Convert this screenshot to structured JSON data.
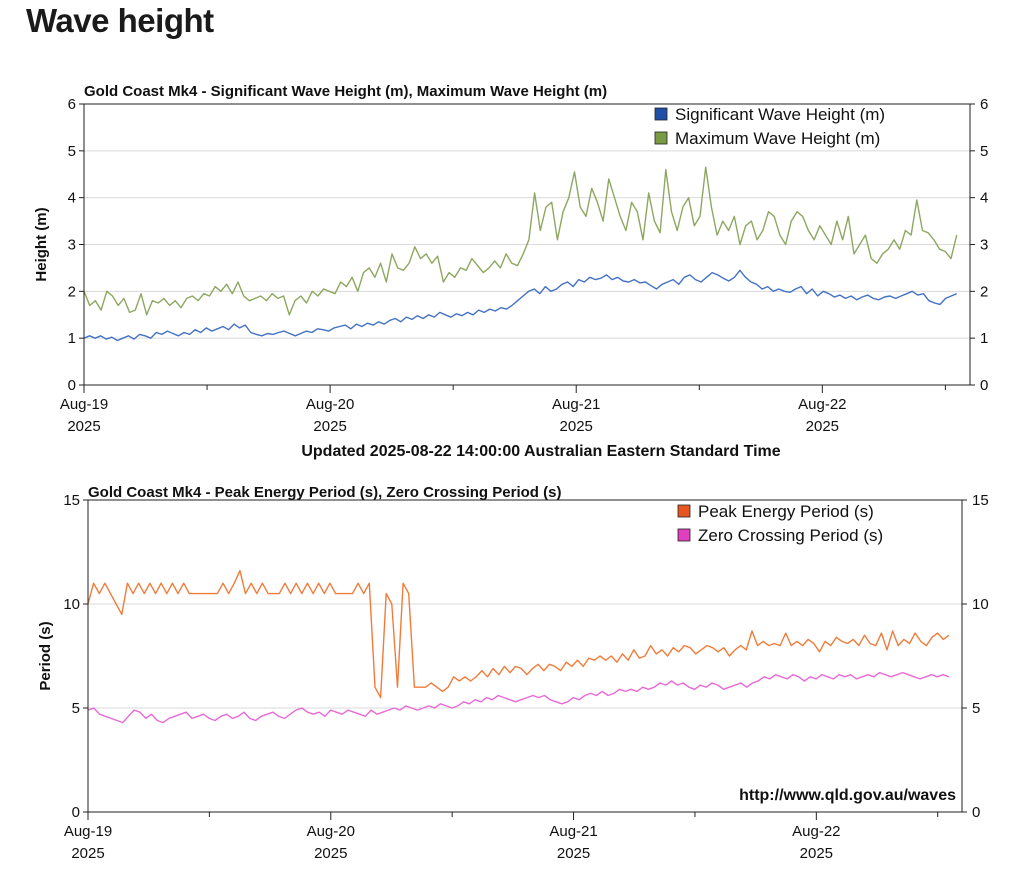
{
  "page": {
    "heading": "Wave height"
  },
  "chart_data": [
    {
      "type": "line",
      "title": "Gold Coast Mk4 - Significant Wave Height (m), Maximum Wave Height (m)",
      "ylabel": "Height (m)",
      "ylim": [
        0,
        6
      ],
      "yticks": [
        "0",
        "1",
        "2",
        "3",
        "4",
        "5",
        "6"
      ],
      "xlim": [
        0,
        3.6
      ],
      "x_date_labels": [
        {
          "x": 0,
          "line1": "Aug-19",
          "line2": "2025"
        },
        {
          "x": 1,
          "line1": "Aug-20",
          "line2": "2025"
        },
        {
          "x": 2,
          "line1": "Aug-21",
          "line2": "2025"
        },
        {
          "x": 3,
          "line1": "Aug-22",
          "line2": "2025"
        }
      ],
      "grid": true,
      "legend_position": "top-right",
      "footer": "Updated 2025-08-22 14:00:00 Australian Eastern Standard Time",
      "series": [
        {
          "name": "Significant Wave Height (m)",
          "color": "#4472c4",
          "legend_color": "#1f4fa6",
          "values": [
            1.0,
            1.05,
            1.0,
            1.05,
            0.98,
            1.02,
            0.95,
            1.0,
            1.05,
            0.98,
            1.08,
            1.05,
            1.0,
            1.12,
            1.08,
            1.15,
            1.1,
            1.05,
            1.12,
            1.08,
            1.18,
            1.12,
            1.22,
            1.15,
            1.2,
            1.25,
            1.18,
            1.3,
            1.22,
            1.28,
            1.12,
            1.08,
            1.05,
            1.1,
            1.08,
            1.12,
            1.15,
            1.1,
            1.05,
            1.1,
            1.15,
            1.12,
            1.2,
            1.18,
            1.15,
            1.22,
            1.25,
            1.28,
            1.2,
            1.3,
            1.25,
            1.32,
            1.28,
            1.35,
            1.3,
            1.38,
            1.42,
            1.35,
            1.45,
            1.4,
            1.48,
            1.42,
            1.5,
            1.45,
            1.55,
            1.5,
            1.45,
            1.52,
            1.48,
            1.55,
            1.5,
            1.6,
            1.55,
            1.62,
            1.58,
            1.65,
            1.62,
            1.7,
            1.8,
            1.9,
            2.0,
            2.05,
            1.95,
            2.1,
            2.0,
            2.05,
            2.15,
            2.2,
            2.1,
            2.25,
            2.2,
            2.3,
            2.25,
            2.28,
            2.35,
            2.25,
            2.3,
            2.22,
            2.2,
            2.25,
            2.18,
            2.2,
            2.12,
            2.05,
            2.15,
            2.2,
            2.25,
            2.15,
            2.3,
            2.35,
            2.25,
            2.2,
            2.3,
            2.4,
            2.35,
            2.28,
            2.22,
            2.3,
            2.45,
            2.3,
            2.2,
            2.15,
            2.05,
            2.1,
            2.0,
            2.05,
            2.0,
            1.98,
            2.05,
            2.1,
            1.95,
            2.05,
            1.9,
            2.0,
            1.95,
            1.88,
            1.92,
            1.85,
            1.9,
            1.82,
            1.88,
            1.92,
            1.85,
            1.82,
            1.88,
            1.9,
            1.85,
            1.9,
            1.95,
            2.0,
            1.92,
            1.95,
            1.8,
            1.75,
            1.72,
            1.85,
            1.9,
            1.95
          ]
        },
        {
          "name": "Maximum Wave Height (m)",
          "color": "#8ea760",
          "legend_color": "#7a9a46",
          "values": [
            2.0,
            1.7,
            1.8,
            1.6,
            2.0,
            1.9,
            1.7,
            1.85,
            1.55,
            1.6,
            1.95,
            1.5,
            1.8,
            1.75,
            1.85,
            1.7,
            1.8,
            1.65,
            1.85,
            1.9,
            1.8,
            1.95,
            1.9,
            2.1,
            2.0,
            2.15,
            1.95,
            2.2,
            1.9,
            1.8,
            1.85,
            1.9,
            1.8,
            1.95,
            1.85,
            1.9,
            1.5,
            1.8,
            1.9,
            1.75,
            2.0,
            1.9,
            2.05,
            2.0,
            1.95,
            2.2,
            2.1,
            2.3,
            2.0,
            2.4,
            2.5,
            2.3,
            2.6,
            2.2,
            2.8,
            2.5,
            2.45,
            2.6,
            2.95,
            2.7,
            2.8,
            2.6,
            2.75,
            2.2,
            2.4,
            2.3,
            2.5,
            2.45,
            2.7,
            2.55,
            2.4,
            2.5,
            2.65,
            2.5,
            2.8,
            2.6,
            2.55,
            2.8,
            3.1,
            4.1,
            3.3,
            3.8,
            3.9,
            3.1,
            3.7,
            4.0,
            4.55,
            3.8,
            3.6,
            4.2,
            3.9,
            3.5,
            4.4,
            4.0,
            3.6,
            3.3,
            3.9,
            3.7,
            3.1,
            4.1,
            3.5,
            3.25,
            4.6,
            3.7,
            3.3,
            3.8,
            4.0,
            3.4,
            3.6,
            4.65,
            3.8,
            3.2,
            3.5,
            3.3,
            3.6,
            3.0,
            3.4,
            3.5,
            3.1,
            3.3,
            3.7,
            3.6,
            3.2,
            3.0,
            3.5,
            3.7,
            3.6,
            3.3,
            3.1,
            3.4,
            3.2,
            3.0,
            3.5,
            3.1,
            3.6,
            2.8,
            3.0,
            3.2,
            2.7,
            2.6,
            2.8,
            2.9,
            3.1,
            2.9,
            3.3,
            3.2,
            3.95,
            3.3,
            3.25,
            3.1,
            2.9,
            2.85,
            2.7,
            3.2
          ]
        }
      ]
    },
    {
      "type": "line",
      "title": "Gold Coast Mk4 - Peak Energy Period (s), Zero Crossing Period (s)",
      "ylabel": "Period (s)",
      "ylim": [
        0,
        15
      ],
      "yticks": [
        "0",
        "5",
        "10",
        "15"
      ],
      "xlim": [
        0,
        3.6
      ],
      "x_date_labels": [
        {
          "x": 0,
          "line1": "Aug-19",
          "line2": "2025"
        },
        {
          "x": 1,
          "line1": "Aug-20",
          "line2": "2025"
        },
        {
          "x": 2,
          "line1": "Aug-21",
          "line2": "2025"
        },
        {
          "x": 3,
          "line1": "Aug-22",
          "line2": "2025"
        }
      ],
      "grid": true,
      "legend_position": "top-right",
      "annotation": "http://www.qld.gov.au/waves",
      "series": [
        {
          "name": "Peak Energy Period (s)",
          "color": "#f07c3a",
          "legend_color": "#e8561f",
          "values": [
            10.0,
            11.0,
            10.5,
            11.0,
            10.5,
            10.0,
            9.5,
            11.0,
            10.5,
            11.0,
            10.5,
            11.0,
            10.5,
            11.0,
            10.5,
            11.0,
            10.5,
            11.0,
            10.5,
            10.5,
            10.5,
            10.5,
            10.5,
            10.5,
            11.0,
            10.5,
            11.0,
            11.6,
            10.5,
            11.0,
            10.5,
            11.0,
            10.5,
            10.5,
            10.5,
            11.0,
            10.5,
            11.0,
            10.5,
            11.0,
            10.5,
            11.0,
            10.5,
            11.0,
            10.5,
            10.5,
            10.5,
            10.5,
            11.0,
            10.5,
            11.0,
            6.0,
            5.5,
            10.5,
            10.0,
            6.0,
            11.0,
            10.5,
            6.0,
            6.0,
            6.0,
            6.2,
            6.0,
            5.8,
            6.0,
            6.5,
            6.3,
            6.5,
            6.3,
            6.5,
            6.8,
            6.5,
            6.9,
            6.6,
            7.0,
            6.7,
            7.0,
            6.9,
            6.6,
            6.9,
            7.1,
            6.8,
            7.1,
            7.0,
            6.8,
            7.2,
            7.0,
            7.3,
            7.0,
            7.4,
            7.3,
            7.5,
            7.3,
            7.5,
            7.2,
            7.6,
            7.3,
            7.8,
            7.4,
            7.5,
            8.0,
            7.6,
            7.8,
            7.5,
            7.9,
            7.7,
            8.0,
            7.9,
            7.6,
            7.8,
            8.0,
            7.9,
            7.7,
            7.9,
            7.5,
            7.8,
            8.0,
            7.8,
            8.7,
            8.0,
            8.2,
            8.0,
            8.1,
            8.0,
            8.6,
            8.0,
            8.2,
            8.0,
            8.3,
            8.1,
            7.7,
            8.2,
            8.0,
            8.4,
            8.2,
            8.1,
            8.3,
            8.0,
            8.5,
            8.1,
            8.0,
            8.6,
            7.8,
            8.7,
            8.0,
            8.3,
            8.1,
            8.6,
            8.2,
            8.0,
            8.4,
            8.6,
            8.3,
            8.5
          ]
        },
        {
          "name": "Zero Crossing Period (s)",
          "color": "#e86ad6",
          "legend_color": "#e040c0",
          "values": [
            4.9,
            5.0,
            4.7,
            4.6,
            4.5,
            4.4,
            4.3,
            4.6,
            4.9,
            4.8,
            4.5,
            4.7,
            4.4,
            4.3,
            4.5,
            4.6,
            4.7,
            4.8,
            4.5,
            4.6,
            4.7,
            4.5,
            4.4,
            4.6,
            4.7,
            4.5,
            4.6,
            4.8,
            4.5,
            4.4,
            4.6,
            4.7,
            4.8,
            4.6,
            4.5,
            4.7,
            4.9,
            5.0,
            4.8,
            4.7,
            4.8,
            4.6,
            4.9,
            4.8,
            4.7,
            4.9,
            4.8,
            4.7,
            4.6,
            4.9,
            4.7,
            4.8,
            4.9,
            5.0,
            4.9,
            5.1,
            5.0,
            4.9,
            5.0,
            5.1,
            5.0,
            5.2,
            5.1,
            5.0,
            5.1,
            5.3,
            5.2,
            5.4,
            5.3,
            5.5,
            5.4,
            5.6,
            5.5,
            5.4,
            5.3,
            5.4,
            5.5,
            5.6,
            5.5,
            5.6,
            5.4,
            5.3,
            5.2,
            5.3,
            5.5,
            5.4,
            5.6,
            5.7,
            5.6,
            5.8,
            5.6,
            5.7,
            5.9,
            5.8,
            5.9,
            5.8,
            6.0,
            5.9,
            6.0,
            6.2,
            6.1,
            6.3,
            6.1,
            6.2,
            6.0,
            5.9,
            6.1,
            6.0,
            6.2,
            6.1,
            5.9,
            6.0,
            6.1,
            6.2,
            6.0,
            6.2,
            6.3,
            6.5,
            6.4,
            6.6,
            6.5,
            6.4,
            6.6,
            6.5,
            6.3,
            6.5,
            6.4,
            6.6,
            6.5,
            6.4,
            6.6,
            6.5,
            6.6,
            6.4,
            6.5,
            6.6,
            6.5,
            6.7,
            6.6,
            6.5,
            6.6,
            6.7,
            6.6,
            6.5,
            6.4,
            6.5,
            6.6,
            6.5,
            6.6,
            6.5
          ]
        }
      ]
    }
  ]
}
